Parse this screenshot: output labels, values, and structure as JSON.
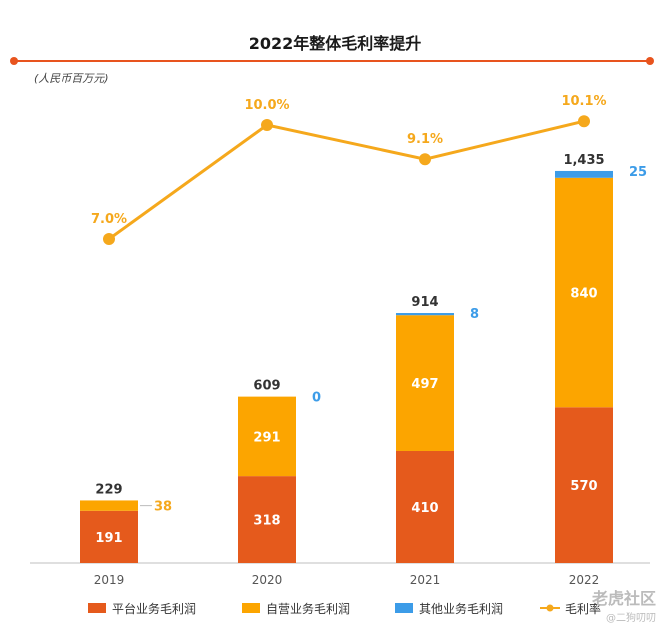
{
  "title": "2022年整体毛利率提升",
  "unit_note": "(人民币百万元)",
  "colors": {
    "platform": "#E55A1C",
    "self_operated": "#FCA500",
    "other": "#3C9CE8",
    "margin_line": "#F5A81C",
    "title_rule": "#E8541E",
    "axis": "#BFBFBF",
    "other_label": "#3C9CE8",
    "self_label_2019": "#F5A81C"
  },
  "watermark": {
    "brand": "老虎社区",
    "handle": "@二狗叨叨"
  },
  "chart_data": {
    "type": "bar",
    "stacked": true,
    "categories": [
      "2019",
      "2020",
      "2021",
      "2022"
    ],
    "series": [
      {
        "name": "平台业务毛利润",
        "values": [
          191,
          318,
          410,
          570
        ],
        "labels": [
          "191",
          "318",
          "410",
          "570"
        ]
      },
      {
        "name": "自营业务毛利润",
        "values": [
          38,
          291,
          497,
          840
        ],
        "labels": [
          "38",
          "291",
          "497",
          "840"
        ]
      },
      {
        "name": "其他业务毛利润",
        "values": [
          0,
          0,
          8,
          25
        ],
        "labels": [
          "",
          "0",
          "8",
          "25"
        ]
      }
    ],
    "totals": [
      229,
      609,
      914,
      1435
    ],
    "total_labels": [
      "229",
      "609",
      "914",
      "1,435"
    ],
    "line": {
      "name": "毛利率",
      "values": [
        7.0,
        10.0,
        9.1,
        10.1
      ],
      "labels": [
        "7.0%",
        "10.0%",
        "9.1%",
        "10.1%"
      ]
    },
    "ylim": [
      0,
      1435
    ],
    "legend_position": "bottom",
    "grid": false
  }
}
